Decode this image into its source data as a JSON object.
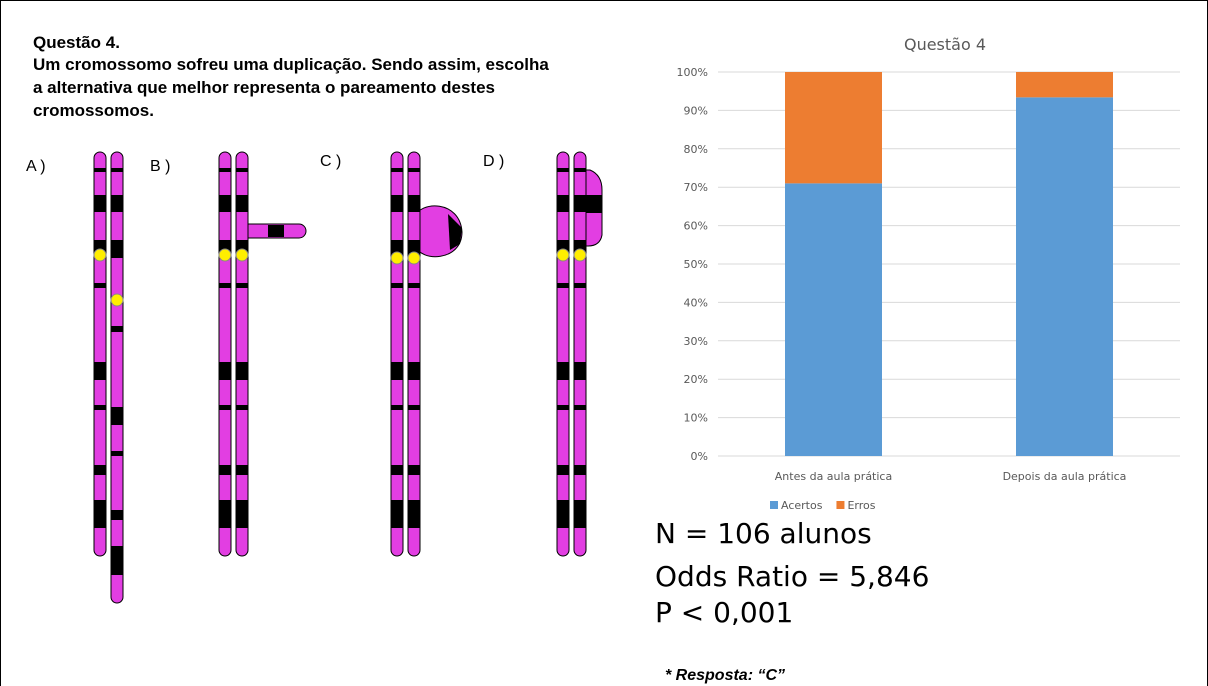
{
  "question": {
    "title": "Questão 4.",
    "lines": [
      "Um cromossomo sofreu uma duplicação. Sendo assim, escolha",
      "a alternativa que melhor representa o pareamento destes",
      "cromossomos."
    ],
    "options": [
      "A )",
      "B )",
      "C )",
      "D )"
    ]
  },
  "chart_data": {
    "type": "stacked_bar",
    "title": "Questão 4",
    "categories": [
      "Antes da aula prática",
      "Depois da aula prática"
    ],
    "series": [
      {
        "name": "Acertos",
        "color": "#5b9bd5",
        "values": [
          71,
          93.4
        ]
      },
      {
        "name": "Erros",
        "color": "#ed7d31",
        "values": [
          29,
          6.6
        ]
      }
    ],
    "ylim": [
      0,
      100
    ],
    "yticks": [
      {
        "value": 0,
        "label": "0%"
      },
      {
        "value": 10,
        "label": "10%"
      },
      {
        "value": 20,
        "label": "20%"
      },
      {
        "value": 30,
        "label": "30%"
      },
      {
        "value": 40,
        "label": "40%"
      },
      {
        "value": 50,
        "label": "50%"
      },
      {
        "value": 60,
        "label": "60%"
      },
      {
        "value": 70,
        "label": "70%"
      },
      {
        "value": 80,
        "label": "80%"
      },
      {
        "value": 90,
        "label": "90%"
      },
      {
        "value": 100,
        "label": "100%"
      }
    ],
    "grid": true,
    "legend": "bottom"
  },
  "stats": [
    "N = 106 alunos",
    "Odds Ratio = 5,846",
    "P < 0,001"
  ],
  "answer": "* Resposta: “C”"
}
